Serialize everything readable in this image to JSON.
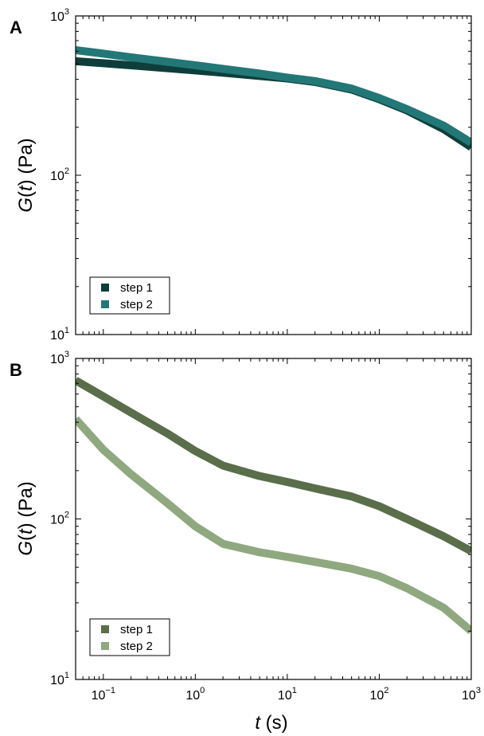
{
  "figure": {
    "xlabel": {
      "italic": "t",
      "rest": " (s)"
    },
    "ylabel": {
      "prefix": "G(",
      "italic": "t",
      "suffix": ") (Pa)"
    }
  },
  "chart_data": [
    {
      "panel": "A",
      "type": "line",
      "x_scale": "log",
      "y_scale": "log",
      "xlim": [
        0.05,
        1000
      ],
      "ylim": [
        10,
        1000
      ],
      "x_ticks": [
        0.1,
        1,
        10,
        100,
        1000
      ],
      "x_tick_labels": [
        {
          "base": "10",
          "exp": "−1"
        },
        {
          "base": "10",
          "exp": "0"
        },
        {
          "base": "10",
          "exp": "1"
        },
        {
          "base": "10",
          "exp": "2"
        },
        {
          "base": "10",
          "exp": "3"
        }
      ],
      "y_ticks": [
        10,
        100,
        1000
      ],
      "y_tick_labels": [
        {
          "base": "10",
          "exp": "1"
        },
        {
          "base": "10",
          "exp": "2"
        },
        {
          "base": "10",
          "exp": "3"
        }
      ],
      "legend_position": "bottom-left",
      "series": [
        {
          "name": "step 1",
          "color": "#0f3d3a",
          "x": [
            0.05,
            0.1,
            0.2,
            0.5,
            1,
            2,
            5,
            10,
            20,
            50,
            100,
            200,
            500,
            1000
          ],
          "y": [
            520,
            505,
            490,
            470,
            455,
            440,
            420,
            405,
            385,
            345,
            300,
            255,
            195,
            150
          ]
        },
        {
          "name": "step 2",
          "color": "#237777",
          "x": [
            0.05,
            0.1,
            0.2,
            0.5,
            1,
            2,
            5,
            10,
            20,
            50,
            100,
            200,
            500,
            1000
          ],
          "y": [
            610,
            580,
            550,
            515,
            490,
            465,
            435,
            410,
            390,
            350,
            305,
            260,
            205,
            160
          ]
        }
      ]
    },
    {
      "panel": "B",
      "type": "line",
      "x_scale": "log",
      "y_scale": "log",
      "xlim": [
        0.05,
        1000
      ],
      "ylim": [
        10,
        1000
      ],
      "x_ticks": [
        0.1,
        1,
        10,
        100,
        1000
      ],
      "x_tick_labels": [
        {
          "base": "10",
          "exp": "−1"
        },
        {
          "base": "10",
          "exp": "0"
        },
        {
          "base": "10",
          "exp": "1"
        },
        {
          "base": "10",
          "exp": "2"
        },
        {
          "base": "10",
          "exp": "3"
        }
      ],
      "y_ticks": [
        10,
        100,
        1000
      ],
      "y_tick_labels": [
        {
          "base": "10",
          "exp": "1"
        },
        {
          "base": "10",
          "exp": "2"
        },
        {
          "base": "10",
          "exp": "3"
        }
      ],
      "legend_position": "bottom-left",
      "series": [
        {
          "name": "step 1",
          "color": "#5a6e4b",
          "x": [
            0.05,
            0.1,
            0.2,
            0.5,
            1,
            2,
            5,
            10,
            20,
            50,
            100,
            200,
            500,
            1000
          ],
          "y": [
            730,
            580,
            460,
            340,
            265,
            215,
            185,
            170,
            155,
            138,
            120,
            100,
            78,
            63
          ]
        },
        {
          "name": "step 2",
          "color": "#8fa880",
          "x": [
            0.05,
            0.1,
            0.2,
            0.5,
            1,
            2,
            5,
            10,
            20,
            50,
            100,
            200,
            500,
            1000
          ],
          "y": [
            420,
            270,
            190,
            125,
            90,
            70,
            62,
            58,
            54,
            49,
            44,
            37,
            28,
            20
          ]
        }
      ]
    }
  ]
}
